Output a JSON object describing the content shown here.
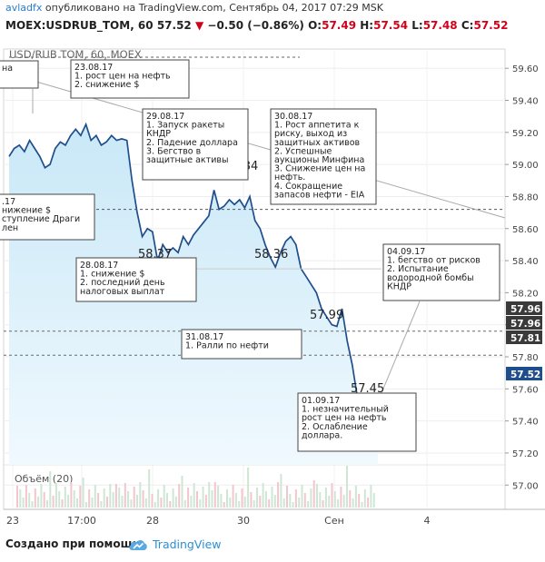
{
  "header": {
    "author": "avladfx",
    "published_text": "опубликовано на TradingView.com, Сентябрь 04, 2017 07:29 MSK",
    "symbol_line": "MOEX:USDRUB_TOM, 60",
    "last_price": "57.52",
    "change": "−0.50 (−0.86%)",
    "o_label": "O:",
    "o_value": "57.49",
    "h_label": "H:",
    "h_value": "57.54",
    "l_label": "L:",
    "l_value": "57.48",
    "c_label": "C:",
    "c_value": "57.52"
  },
  "chart_data": {
    "type": "line",
    "title": "USD/RUB TOM, 60, MOEX",
    "xlabel": "",
    "ylabel": "",
    "ylim": [
      56.86,
      59.72
    ],
    "y_ticks": [
      "59.60",
      "59.40",
      "59.20",
      "59.00",
      "58.80",
      "58.60",
      "58.40",
      "58.20",
      "58.00",
      "57.80",
      "57.60",
      "57.40",
      "57.20",
      "57.00"
    ],
    "x_ticks": [
      "23",
      "17:00",
      "28",
      "30",
      "Сен",
      "4"
    ],
    "series": [
      {
        "values": [
          59.05,
          59.1,
          59.12,
          59.08,
          59.15,
          59.1,
          59.05,
          58.98,
          59.0,
          59.1,
          59.14,
          59.12,
          59.18,
          59.22,
          59.18,
          59.25,
          59.15,
          59.18,
          59.12,
          59.14,
          59.18,
          59.15,
          59.16,
          59.15,
          58.9,
          58.7,
          58.55,
          58.6,
          58.58,
          58.4,
          58.5,
          58.45,
          58.48,
          58.45,
          58.55,
          58.5,
          58.56,
          58.6,
          58.64,
          58.68,
          58.84,
          58.72,
          58.74,
          58.78,
          58.75,
          58.78,
          58.73,
          58.8,
          58.65,
          58.6,
          58.5,
          58.42,
          58.36,
          58.45,
          58.52,
          58.55,
          58.5,
          58.35,
          58.3,
          58.25,
          58.2,
          58.1,
          58.05,
          58.0,
          57.99,
          58.1,
          57.9,
          57.75,
          57.55,
          57.45,
          57.5,
          57.48,
          57.52
        ]
      }
    ],
    "volume_label": "Объём (20)",
    "price_tags": [
      "57.96",
      "57.96",
      "57.81",
      "57.52"
    ],
    "value_labels": [
      "58.84",
      "58.37",
      "58.36",
      "57.99",
      "57.45"
    ],
    "annotations": [
      {
        "lines": [
          "на"
        ]
      },
      {
        "lines": [
          "23.08.17",
          "1. рост цен на нефть",
          "2. снижение $"
        ]
      },
      {
        "lines": [
          "29.08.17",
          "1. Запуск ракеты",
          "КНДР",
          "2. Падение доллара",
          "3. Бегство в",
          "защитные активы"
        ]
      },
      {
        "lines": [
          "30.08.17",
          "1. Рост аппетита к",
          "риску, выход из",
          "защитных активов",
          "2. Успешные",
          "аукционы Минфина",
          "3. Снижение цен на",
          "нефть.",
          "4. Сокращение",
          "запасов нефти - EIA"
        ]
      },
      {
        "lines": [
          ".17",
          "нижение $",
          "ступление Драги",
          "лен"
        ]
      },
      {
        "lines": [
          "28.08.17",
          "1. снижение $",
          "2. последний день",
          "налоговых выплат"
        ]
      },
      {
        "lines": [
          "04.09.17",
          "1. бегство от рисков",
          "2. Испытание",
          "водородной бомбы",
          "КНДР"
        ]
      },
      {
        "lines": [
          "31.08.17",
          "1. Ралли по нефти"
        ]
      },
      {
        "lines": [
          "01.09.17",
          "1. незначительный",
          "рост цен на нефть",
          "2. Ослабление",
          "доллара."
        ]
      }
    ],
    "grid": true
  },
  "footer": {
    "credit": "Создано при помощи",
    "brand": "TradingView",
    "icon": "tradingview-cloud-icon"
  },
  "colors": {
    "line": "#1f4e8c",
    "area_top": "#c9e8f7",
    "area_bottom": "#f0f9fe",
    "down": "#d0021b",
    "tag_dark": "#3a3a3a",
    "tag_blue": "#1f4e8c",
    "brand": "#2a8fd6"
  }
}
